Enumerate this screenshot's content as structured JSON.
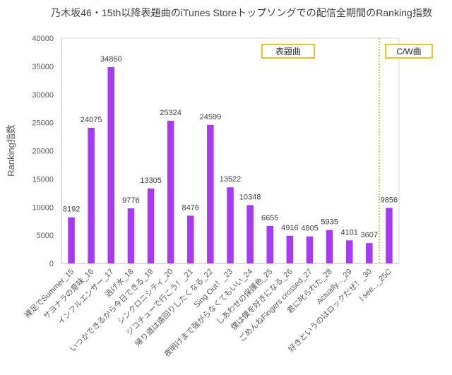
{
  "chart_data": {
    "type": "bar",
    "title": "乃木坂46・15th以降表題曲のiTunes Storeトップソングでの配信全期間のRanking指数",
    "xlabel": "",
    "ylabel": "Ranking指数",
    "ylim": [
      0,
      40000
    ],
    "yticks": [
      0,
      5000,
      10000,
      15000,
      20000,
      25000,
      30000,
      35000,
      40000
    ],
    "grid": false,
    "categories": [
      "裸足でSummer_15",
      "サヨナラの意味_16",
      "インフルエンサー_17",
      "逃げ水_18",
      "いつかできるから今日できる_19",
      "シンクロニシティ_20",
      "ジコチューで行こう！_21",
      "帰り道は遠回りしたくなる_22",
      "Sing Out！_23",
      "夜明けまで強がらなくてもいい_24",
      "しあわせの保護色_25",
      "僕は僕を好きになる_26",
      "ごめんねFingers crossed_27",
      "君に叱られた_28",
      "Actually..._29",
      "好きというのはロックだぜ！_30",
      "I see..._25C"
    ],
    "values": [
      8192,
      24075,
      34860,
      9776,
      13305,
      25324,
      8476,
      24599,
      13522,
      10348,
      6655,
      4916,
      4805,
      5935,
      4101,
      3607,
      9856
    ],
    "annotations": [
      "表題曲",
      "C/W曲"
    ]
  },
  "colors": {
    "bar": "#a83af0",
    "divider": "#d9a82a",
    "annotation_border": "#f2c12e"
  }
}
